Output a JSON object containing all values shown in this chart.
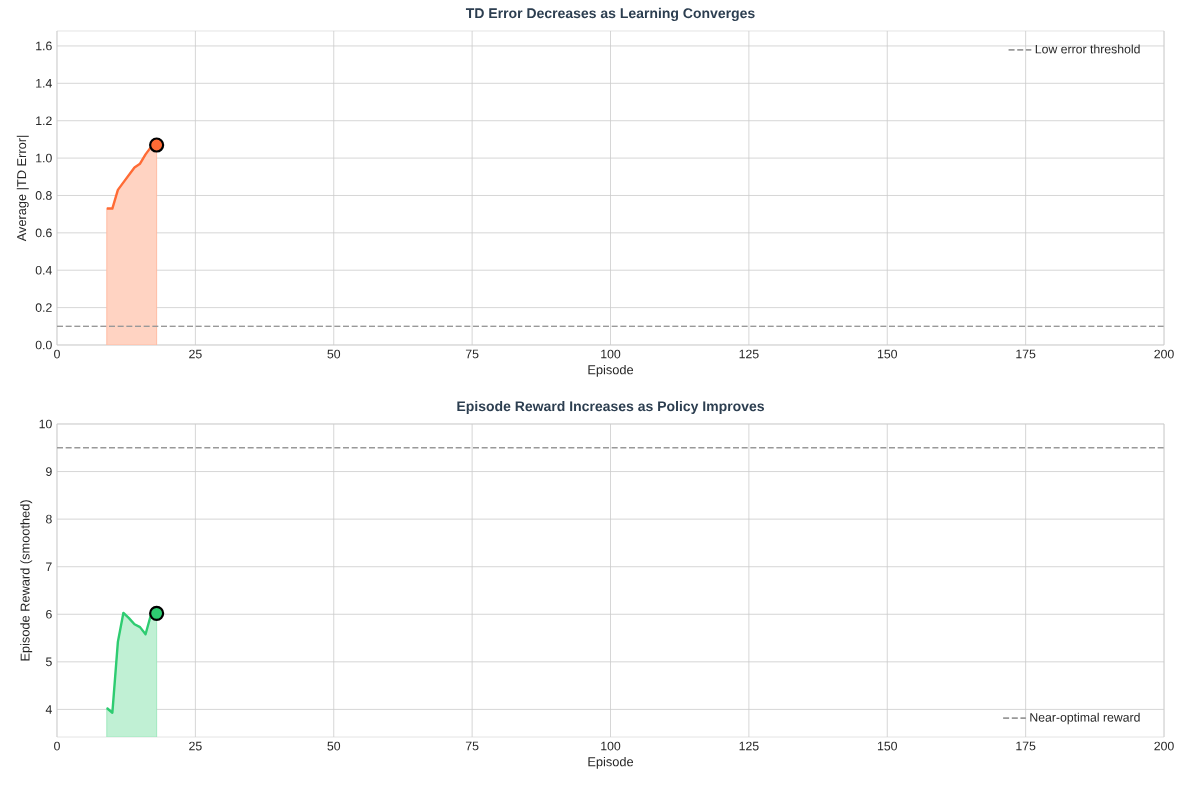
{
  "chart_data": [
    {
      "type": "area",
      "title": "TD Error Decreases as Learning Converges",
      "xlabel": "Episode",
      "ylabel": "Average |TD Error|",
      "xlim": [
        0,
        200
      ],
      "xticks": [
        0,
        25,
        50,
        75,
        100,
        125,
        150,
        175,
        200
      ],
      "ylim": [
        0,
        1.68
      ],
      "yticks": [
        {
          "value": 0,
          "label": "0.0"
        },
        0.2,
        0.4,
        0.6,
        0.8,
        {
          "value": 1,
          "label": "1.0"
        },
        1.2,
        1.4,
        1.6
      ],
      "grid": true,
      "legend": "top right",
      "series": [
        {
          "x": [
            9,
            10,
            11,
            12,
            13,
            14,
            15,
            16,
            17,
            18
          ],
          "values": [
            0.73,
            0.73,
            0.83,
            0.87,
            0.91,
            0.95,
            0.97,
            1.02,
            1.06,
            1.07
          ],
          "color": "#ff6b35"
        },
        {
          "type": "scatter",
          "x": [
            18
          ],
          "values": [
            1.07
          ],
          "color": "#ff6b35",
          "marker": "circle"
        }
      ],
      "ref_lines": [
        {
          "axis": "y",
          "value": 0.1,
          "label": "Low error threshold",
          "color": "#999999",
          "line_style": "dashed"
        }
      ]
    },
    {
      "type": "area",
      "title": "Episode Reward Increases as Policy Improves",
      "xlabel": "Episode",
      "ylabel": "Episode Reward (smoothed)",
      "xlim": [
        0,
        200
      ],
      "xticks": [
        0,
        25,
        50,
        75,
        100,
        125,
        150,
        175,
        200
      ],
      "ylim": [
        3.42,
        10
      ],
      "yticks": [
        4,
        5,
        6,
        7,
        8,
        9,
        10
      ],
      "grid": true,
      "legend": "bottom right",
      "series": [
        {
          "x": [
            9,
            10,
            11,
            12,
            13,
            14,
            15,
            16,
            17,
            18
          ],
          "values": [
            4.03,
            3.93,
            5.42,
            6.03,
            5.92,
            5.79,
            5.73,
            5.58,
            6.0,
            6.02
          ],
          "color": "#2ecc71"
        },
        {
          "type": "scatter",
          "x": [
            18
          ],
          "values": [
            6.02
          ],
          "color": "#2ecc71",
          "marker": "circle"
        }
      ],
      "ref_lines": [
        {
          "axis": "y",
          "value": 9.5,
          "label": "Near-optimal reward",
          "color": "#999999",
          "line_style": "dashed"
        }
      ]
    }
  ]
}
